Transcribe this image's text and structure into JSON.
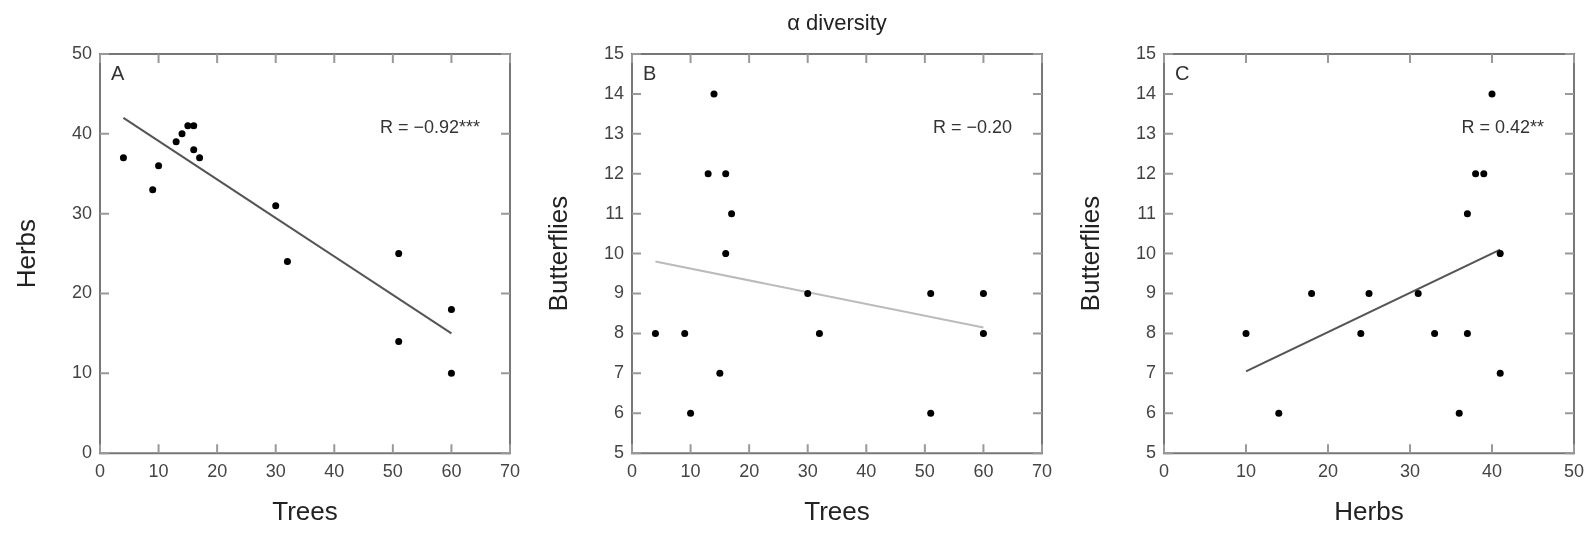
{
  "chart_data": [
    {
      "type": "scatter",
      "xlabel": "Trees",
      "ylabel": "Herbs",
      "annotations": [
        "A",
        "R = −0.92***"
      ],
      "xlim": [
        0,
        70
      ],
      "xticks": [
        0,
        10,
        20,
        30,
        40,
        50,
        60,
        70
      ],
      "ylim": [
        0,
        50
      ],
      "yticks": [
        0,
        10,
        20,
        30,
        40,
        50
      ],
      "series": [
        {
          "color": "#000000",
          "marker": "circle",
          "x": [
            4,
            9,
            10,
            13,
            14,
            15,
            16,
            16,
            17,
            30,
            32,
            51,
            51,
            60,
            60
          ],
          "values": [
            37,
            33,
            36,
            39,
            40,
            41,
            41,
            38,
            37,
            31,
            24,
            25,
            14,
            18,
            10
          ]
        },
        {
          "type": "line",
          "marker": "none",
          "color": "#555555",
          "x": [
            4,
            60
          ],
          "values": [
            42,
            15
          ]
        }
      ]
    },
    {
      "type": "scatter",
      "title": "α diversity",
      "xlabel": "Trees",
      "ylabel": "Butterflies",
      "annotations": [
        "B",
        "R = −0.20"
      ],
      "xlim": [
        0,
        70
      ],
      "xticks": [
        0,
        10,
        20,
        30,
        40,
        50,
        60,
        70
      ],
      "ylim": [
        5,
        15
      ],
      "yticks": [
        5,
        6,
        7,
        8,
        9,
        10,
        11,
        12,
        13,
        14,
        15
      ],
      "series": [
        {
          "color": "#000000",
          "marker": "circle",
          "x": [
            4,
            9,
            10,
            13,
            14,
            15,
            16,
            16,
            17,
            30,
            32,
            51,
            51,
            60,
            60
          ],
          "values": [
            8,
            8,
            6,
            12,
            14,
            7,
            12,
            10,
            11,
            9,
            8,
            9,
            6,
            9,
            8
          ]
        },
        {
          "type": "line",
          "marker": "none",
          "color": "#bbbbbb",
          "x": [
            4,
            60
          ],
          "values": [
            9.8,
            8.15
          ]
        }
      ]
    },
    {
      "type": "scatter",
      "xlabel": "Herbs",
      "ylabel": "Butterflies",
      "annotations": [
        "C",
        "R = 0.42**"
      ],
      "xlim": [
        0,
        50
      ],
      "xticks": [
        0,
        10,
        20,
        30,
        40,
        50
      ],
      "ylim": [
        5,
        15
      ],
      "yticks": [
        5,
        6,
        7,
        8,
        9,
        10,
        11,
        12,
        13,
        14,
        15
      ],
      "series": [
        {
          "color": "#000000",
          "marker": "circle",
          "x": [
            10,
            14,
            18,
            24,
            25,
            31,
            33,
            36,
            37,
            37,
            38,
            39,
            40,
            41,
            41
          ],
          "values": [
            8,
            6,
            9,
            8,
            9,
            9,
            8,
            6,
            11,
            8,
            12,
            12,
            14,
            10,
            7
          ]
        },
        {
          "type": "line",
          "marker": "none",
          "color": "#555555",
          "x": [
            10,
            41
          ],
          "values": [
            7.05,
            10.1
          ]
        }
      ]
    }
  ]
}
